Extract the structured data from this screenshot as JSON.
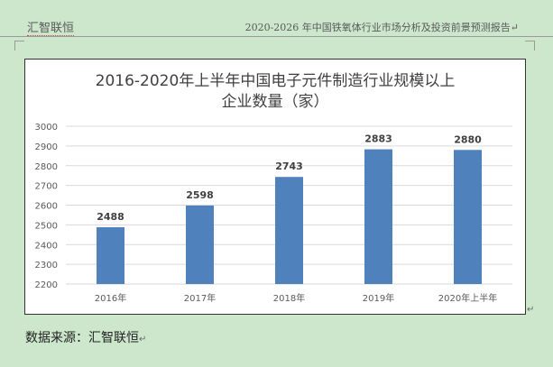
{
  "header": {
    "left_text": "汇智联恒",
    "right_text": "2020-2026 年中国铁氧体行业市场分析及投资前景预测报告↵"
  },
  "footer": {
    "source_text": "数据来源：汇智联恒",
    "para_mark": "↵"
  },
  "chart_para_mark": "↵",
  "colors": {
    "bar": "#4f81bd",
    "gridline": "#d9d9d9",
    "background": "#cde7cd"
  },
  "chart_data": {
    "type": "bar",
    "title_lines": [
      "2016-2020年上半年中国电子元件制造行业规模以上",
      "企业数量（家）"
    ],
    "categories": [
      "2016年",
      "2017年",
      "2018年",
      "2019年",
      "2020年上半年"
    ],
    "values": [
      2488,
      2598,
      2743,
      2883,
      2880
    ],
    "data_labels": [
      "2488",
      "2598",
      "2743",
      "2883",
      "2880"
    ],
    "ylim": [
      2200,
      3000
    ],
    "yticks": [
      "2200",
      "2300",
      "2400",
      "2500",
      "2600",
      "2700",
      "2800",
      "2900",
      "3000"
    ],
    "grid": true,
    "legend": "none"
  }
}
